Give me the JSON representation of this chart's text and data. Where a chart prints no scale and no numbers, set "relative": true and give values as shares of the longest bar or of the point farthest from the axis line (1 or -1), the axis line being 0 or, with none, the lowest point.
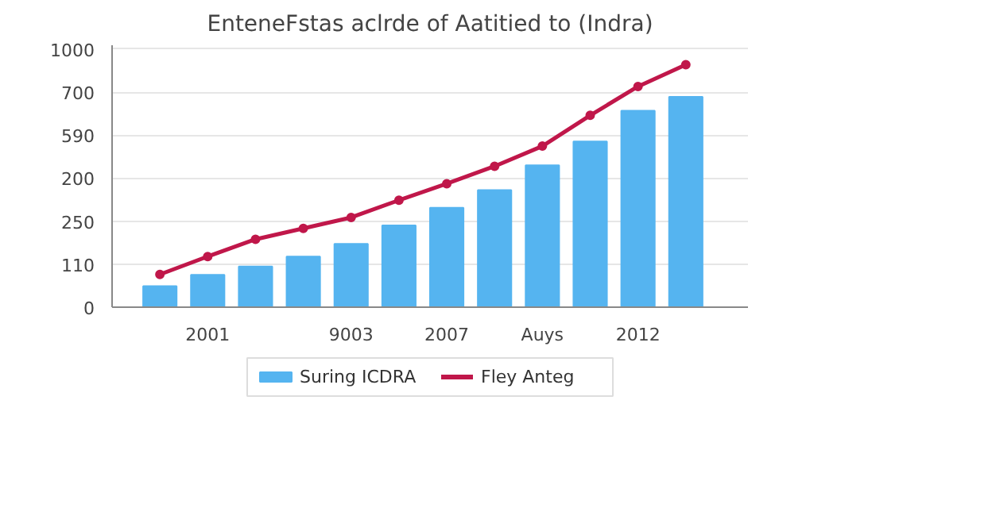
{
  "chart_data": {
    "type": "bar",
    "title": "EnteneFstas aclrde of Aatitied to (Indra)",
    "categories": [
      null,
      "2001",
      null,
      null,
      "9003",
      null,
      "2007",
      null,
      "Auys",
      null,
      "2012",
      null
    ],
    "relative": true,
    "annotations": [
      "0",
      "110",
      "250",
      "200",
      "590",
      "700",
      "1000"
    ],
    "grid": "y",
    "legend": "bottom",
    "marker": "circle",
    "series": [
      {
        "name": "Suring ICDRA",
        "color": "#55b4f0",
        "values": [
          0.087,
          0.133,
          0.168,
          0.209,
          0.261,
          0.337,
          0.41,
          0.483,
          0.585,
          0.683,
          0.81,
          0.867
        ]
      },
      {
        "type": "line",
        "name": "Fley Anteg",
        "color": "#c0174a",
        "values": [
          0.135,
          0.209,
          0.28,
          0.325,
          0.37,
          0.441,
          0.509,
          0.581,
          0.664,
          0.791,
          0.91,
          1.0
        ]
      }
    ]
  }
}
